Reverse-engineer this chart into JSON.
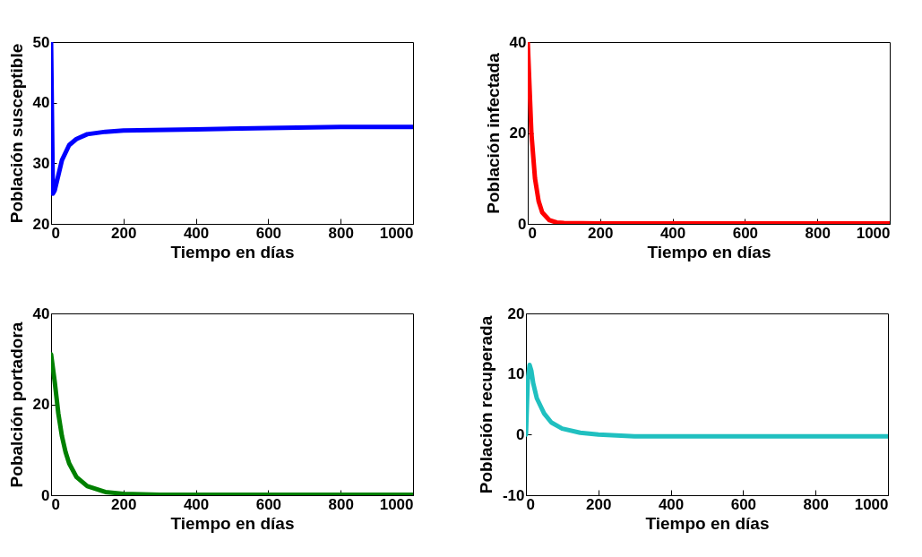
{
  "chart_data": [
    {
      "type": "line",
      "xlabel": "Tiempo en días",
      "ylabel": "Población susceptible",
      "xlim": [
        0,
        1000
      ],
      "xticks": [
        0,
        200,
        400,
        600,
        800,
        1000
      ],
      "ylim": [
        20,
        50
      ],
      "yticks": [
        20,
        30,
        40,
        50
      ],
      "series": [
        {
          "color": "#0000ff",
          "x": [
            0,
            5,
            10,
            20,
            30,
            50,
            70,
            100,
            150,
            200,
            400,
            600,
            800,
            1000
          ],
          "values": [
            50,
            25,
            25.5,
            28,
            30.5,
            33,
            34,
            34.8,
            35.2,
            35.4,
            35.6,
            35.8,
            36,
            36
          ]
        }
      ]
    },
    {
      "type": "line",
      "xlabel": "Tiempo en días",
      "ylabel": "Población infectada",
      "xlim": [
        0,
        1000
      ],
      "xticks": [
        0,
        200,
        400,
        600,
        800,
        1000
      ],
      "ylim": [
        0,
        40
      ],
      "yticks": [
        0,
        20,
        40
      ],
      "series": [
        {
          "color": "#ff0000",
          "x": [
            0,
            5,
            10,
            20,
            30,
            40,
            60,
            80,
            100,
            200,
            1000
          ],
          "values": [
            40,
            30,
            20,
            10,
            5,
            2.5,
            0.8,
            0.3,
            0.2,
            0.1,
            0.1
          ]
        }
      ]
    },
    {
      "type": "line",
      "xlabel": "Tiempo en días",
      "ylabel": "Pobalción portadora",
      "xlim": [
        0,
        1000
      ],
      "xticks": [
        0,
        200,
        400,
        600,
        800,
        1000
      ],
      "ylim": [
        0,
        40
      ],
      "yticks": [
        0,
        20,
        40
      ],
      "series": [
        {
          "color": "#008000",
          "x": [
            0,
            10,
            20,
            30,
            40,
            50,
            70,
            100,
            150,
            200,
            300,
            1000
          ],
          "values": [
            31,
            25,
            18,
            13,
            9.5,
            7,
            4,
            2,
            0.7,
            0.3,
            0.1,
            0.1
          ]
        }
      ]
    },
    {
      "type": "line",
      "xlabel": "Tiempo en días",
      "ylabel": "Población recuperada",
      "xlim": [
        0,
        1000
      ],
      "xticks": [
        0,
        200,
        400,
        600,
        800,
        1000
      ],
      "ylim": [
        -10,
        20
      ],
      "yticks": [
        -10,
        0,
        10,
        20
      ],
      "series": [
        {
          "color": "#20c0c0",
          "x": [
            0,
            5,
            10,
            15,
            20,
            30,
            50,
            70,
            100,
            150,
            200,
            300,
            1000
          ],
          "values": [
            0,
            9,
            11.5,
            10.5,
            8.5,
            6,
            3.5,
            2,
            1,
            0.3,
            0,
            -0.3,
            -0.3
          ]
        }
      ]
    }
  ]
}
